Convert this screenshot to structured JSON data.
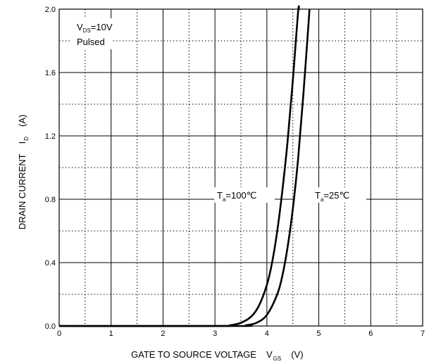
{
  "chart_data": {
    "type": "line",
    "xlabel": {
      "main": "GATE TO SOURCE VOLTAGE",
      "symbol": "V",
      "sub": "GS",
      "unit": "(V)"
    },
    "ylabel": {
      "main": "DRAIN CURRENT",
      "symbol": "I",
      "sub": "D",
      "unit": "(A)"
    },
    "xlim": [
      0,
      7
    ],
    "ylim": [
      0,
      2.0
    ],
    "x_ticks": [
      "0",
      "1",
      "2",
      "3",
      "4",
      "5",
      "6",
      "7"
    ],
    "y_ticks": [
      "0.0",
      "0.4",
      "0.8",
      "1.2",
      "1.6",
      "2.0"
    ],
    "grid": {
      "major": "solid",
      "minor": "dotted"
    },
    "conditions": {
      "line1_symbol": "V",
      "line1_sub": "DS",
      "line1_value": "=10V",
      "line2": "Pulsed"
    },
    "series": [
      {
        "name": "Ta=100℃",
        "label": {
          "symbol": "T",
          "sub": "a",
          "value": "=100℃"
        },
        "points": [
          [
            0,
            0
          ],
          [
            3.0,
            0.0
          ],
          [
            3.3,
            0.005
          ],
          [
            3.5,
            0.02
          ],
          [
            3.7,
            0.06
          ],
          [
            3.85,
            0.13
          ],
          [
            4.0,
            0.26
          ],
          [
            4.1,
            0.4
          ],
          [
            4.2,
            0.6
          ],
          [
            4.3,
            0.86
          ],
          [
            4.4,
            1.17
          ],
          [
            4.5,
            1.55
          ],
          [
            4.6,
            1.98
          ],
          [
            4.62,
            2.0
          ]
        ]
      },
      {
        "name": "Ta=25℃",
        "label": {
          "symbol": "T",
          "sub": "a",
          "value": "=25℃"
        },
        "points": [
          [
            0,
            0
          ],
          [
            3.4,
            0.0
          ],
          [
            3.6,
            0.005
          ],
          [
            3.8,
            0.02
          ],
          [
            4.0,
            0.07
          ],
          [
            4.2,
            0.2
          ],
          [
            4.3,
            0.32
          ],
          [
            4.4,
            0.5
          ],
          [
            4.5,
            0.74
          ],
          [
            4.6,
            1.05
          ],
          [
            4.7,
            1.45
          ],
          [
            4.8,
            1.9
          ],
          [
            4.82,
            2.0
          ]
        ]
      }
    ]
  }
}
